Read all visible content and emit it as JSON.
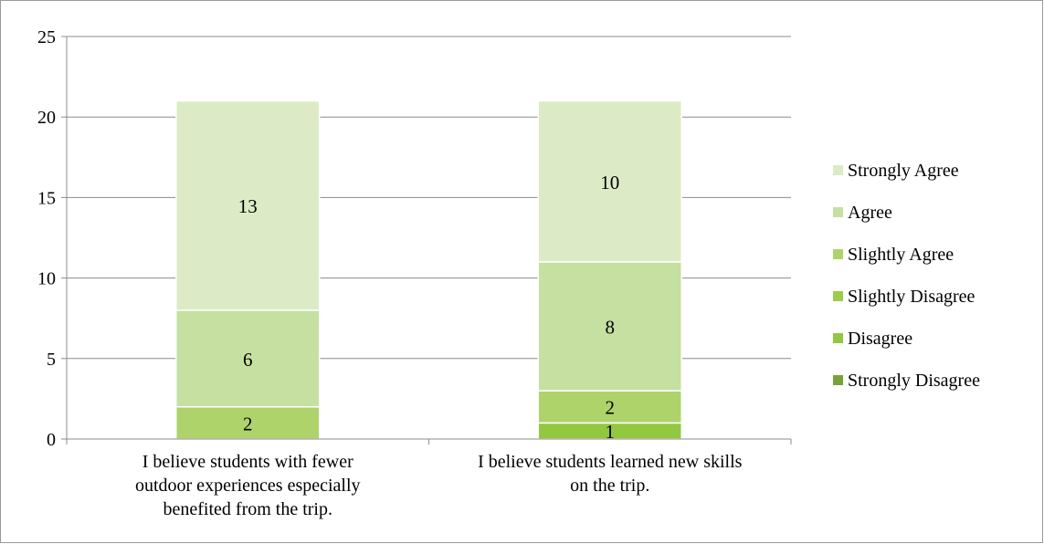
{
  "chart_data": {
    "type": "bar",
    "stacked": true,
    "categories": [
      [
        "I believe students with fewer",
        "outdoor experiences especially",
        "benefited from the trip."
      ],
      [
        "I believe students learned new skills",
        "on the trip."
      ]
    ],
    "ylim": [
      0,
      25
    ],
    "yticks": [
      0,
      5,
      10,
      15,
      20,
      25
    ],
    "grid": true,
    "legend_position": "right",
    "series": [
      {
        "name": "Strongly Disagree",
        "values": [
          0,
          0
        ],
        "color": "#77a33a"
      },
      {
        "name": "Disagree",
        "values": [
          0,
          1
        ],
        "color": "#92c740"
      },
      {
        "name": "Slightly Disagree",
        "values": [
          0,
          0
        ],
        "color": "#9ccc4c"
      },
      {
        "name": "Slightly Agree",
        "values": [
          2,
          2
        ],
        "color": "#aed36b"
      },
      {
        "name": "Agree",
        "values": [
          6,
          8
        ],
        "color": "#c5e0a0"
      },
      {
        "name": "Strongly Agree",
        "values": [
          13,
          10
        ],
        "color": "#dcebc5"
      }
    ],
    "legend_order": [
      "Strongly Agree",
      "Agree",
      "Slightly Agree",
      "Slightly Disagree",
      "Disagree",
      "Strongly Disagree"
    ]
  }
}
